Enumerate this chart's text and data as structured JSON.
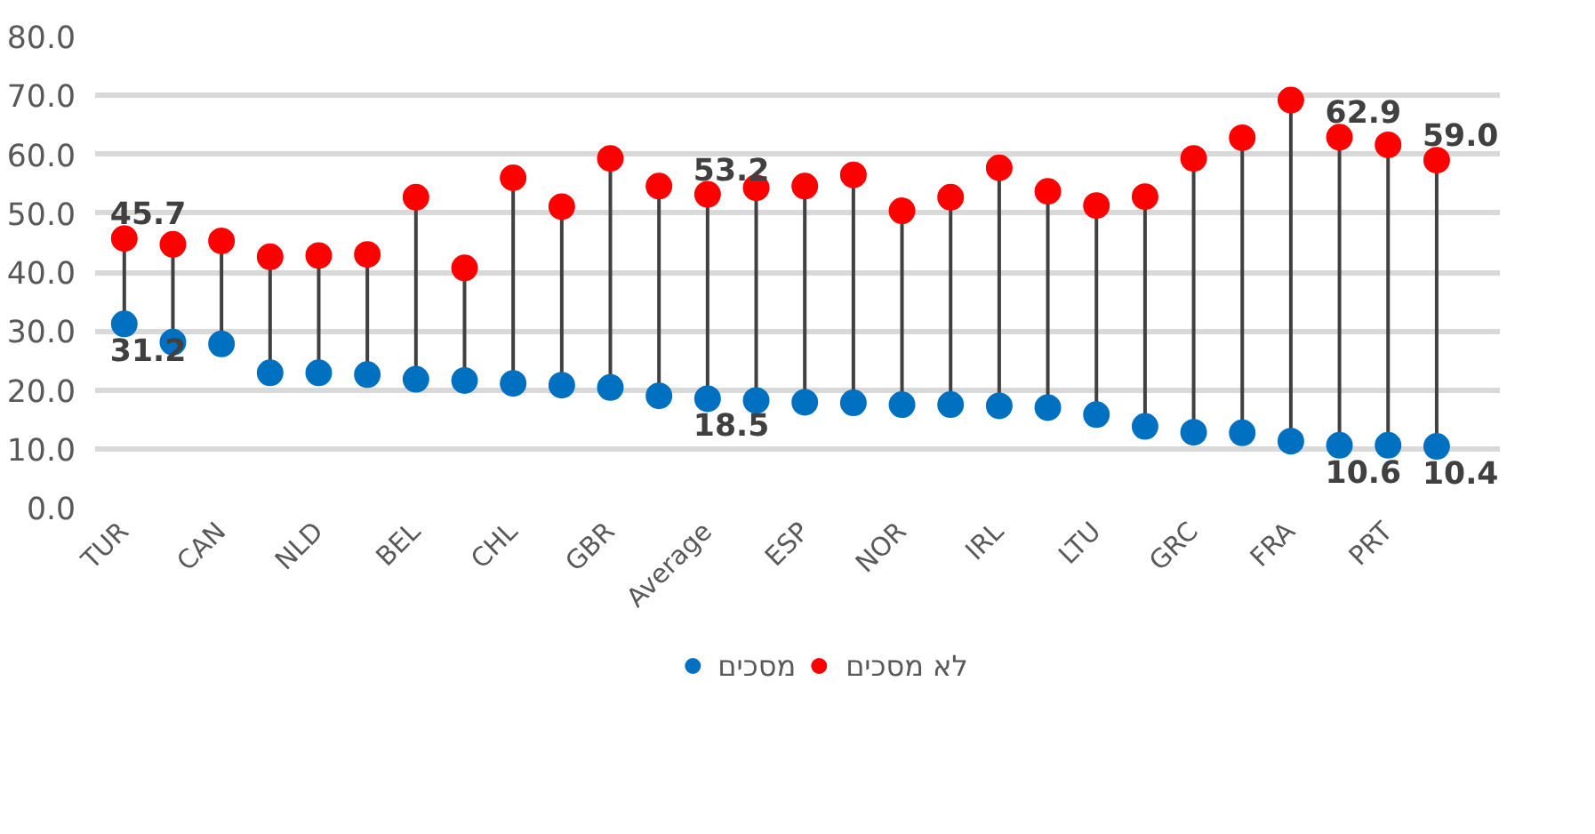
{
  "chart_data": {
    "type": "scatter",
    "categories": [
      "TUR",
      null,
      "CAN",
      null,
      "NLD",
      null,
      "BEL",
      null,
      "CHL",
      null,
      "GBR",
      null,
      "Average",
      null,
      "ESP",
      null,
      "NOR",
      null,
      "IRL",
      null,
      "LTU",
      null,
      "GRC",
      null,
      "FRA",
      null,
      "PRT",
      null
    ],
    "series": [
      {
        "name": "מסכים",
        "color": "#0070c0",
        "values": [
          31.2,
          28.1,
          27.8,
          22.9,
          22.9,
          22.6,
          21.8,
          21.6,
          21.1,
          20.8,
          20.4,
          19.0,
          18.5,
          18.2,
          17.9,
          17.8,
          17.5,
          17.5,
          17.3,
          17.0,
          15.8,
          13.8,
          12.8,
          12.7,
          11.3,
          10.6,
          10.6,
          10.4
        ],
        "value_labels": [
          "31.2",
          null,
          null,
          null,
          null,
          null,
          null,
          null,
          null,
          null,
          null,
          null,
          "18.5",
          null,
          null,
          null,
          null,
          null,
          null,
          null,
          null,
          null,
          null,
          null,
          null,
          "10.6",
          null,
          "10.4"
        ]
      },
      {
        "name": "לא מסכים",
        "color": "#ff0000",
        "values": [
          45.7,
          44.7,
          45.3,
          42.6,
          42.8,
          43.0,
          52.7,
          40.7,
          56.0,
          51.1,
          59.3,
          54.6,
          53.2,
          54.3,
          54.6,
          56.5,
          50.4,
          52.7,
          57.7,
          53.7,
          51.3,
          52.8,
          59.3,
          62.8,
          69.2,
          62.9,
          61.6,
          59.0
        ],
        "value_labels": [
          "45.7",
          null,
          null,
          null,
          null,
          null,
          null,
          null,
          null,
          null,
          null,
          null,
          "53.2",
          null,
          null,
          null,
          null,
          null,
          null,
          null,
          null,
          null,
          null,
          null,
          null,
          "62.9",
          null,
          "59.0"
        ]
      }
    ],
    "ylim": [
      0,
      80
    ],
    "yticks": [
      {
        "value": 0,
        "label": "0.0"
      },
      {
        "value": 10,
        "label": "10.0"
      },
      {
        "value": 20,
        "label": "20.0"
      },
      {
        "value": 30,
        "label": "30.0"
      },
      {
        "value": 40,
        "label": "40.0"
      },
      {
        "value": 50,
        "label": "50.0"
      },
      {
        "value": 60,
        "label": "60.0"
      },
      {
        "value": 70,
        "label": "70.0"
      },
      {
        "value": 80,
        "label": "80.0"
      }
    ],
    "grid": "y",
    "legend": "bottom",
    "marker": "circle",
    "line_style": "solid"
  }
}
